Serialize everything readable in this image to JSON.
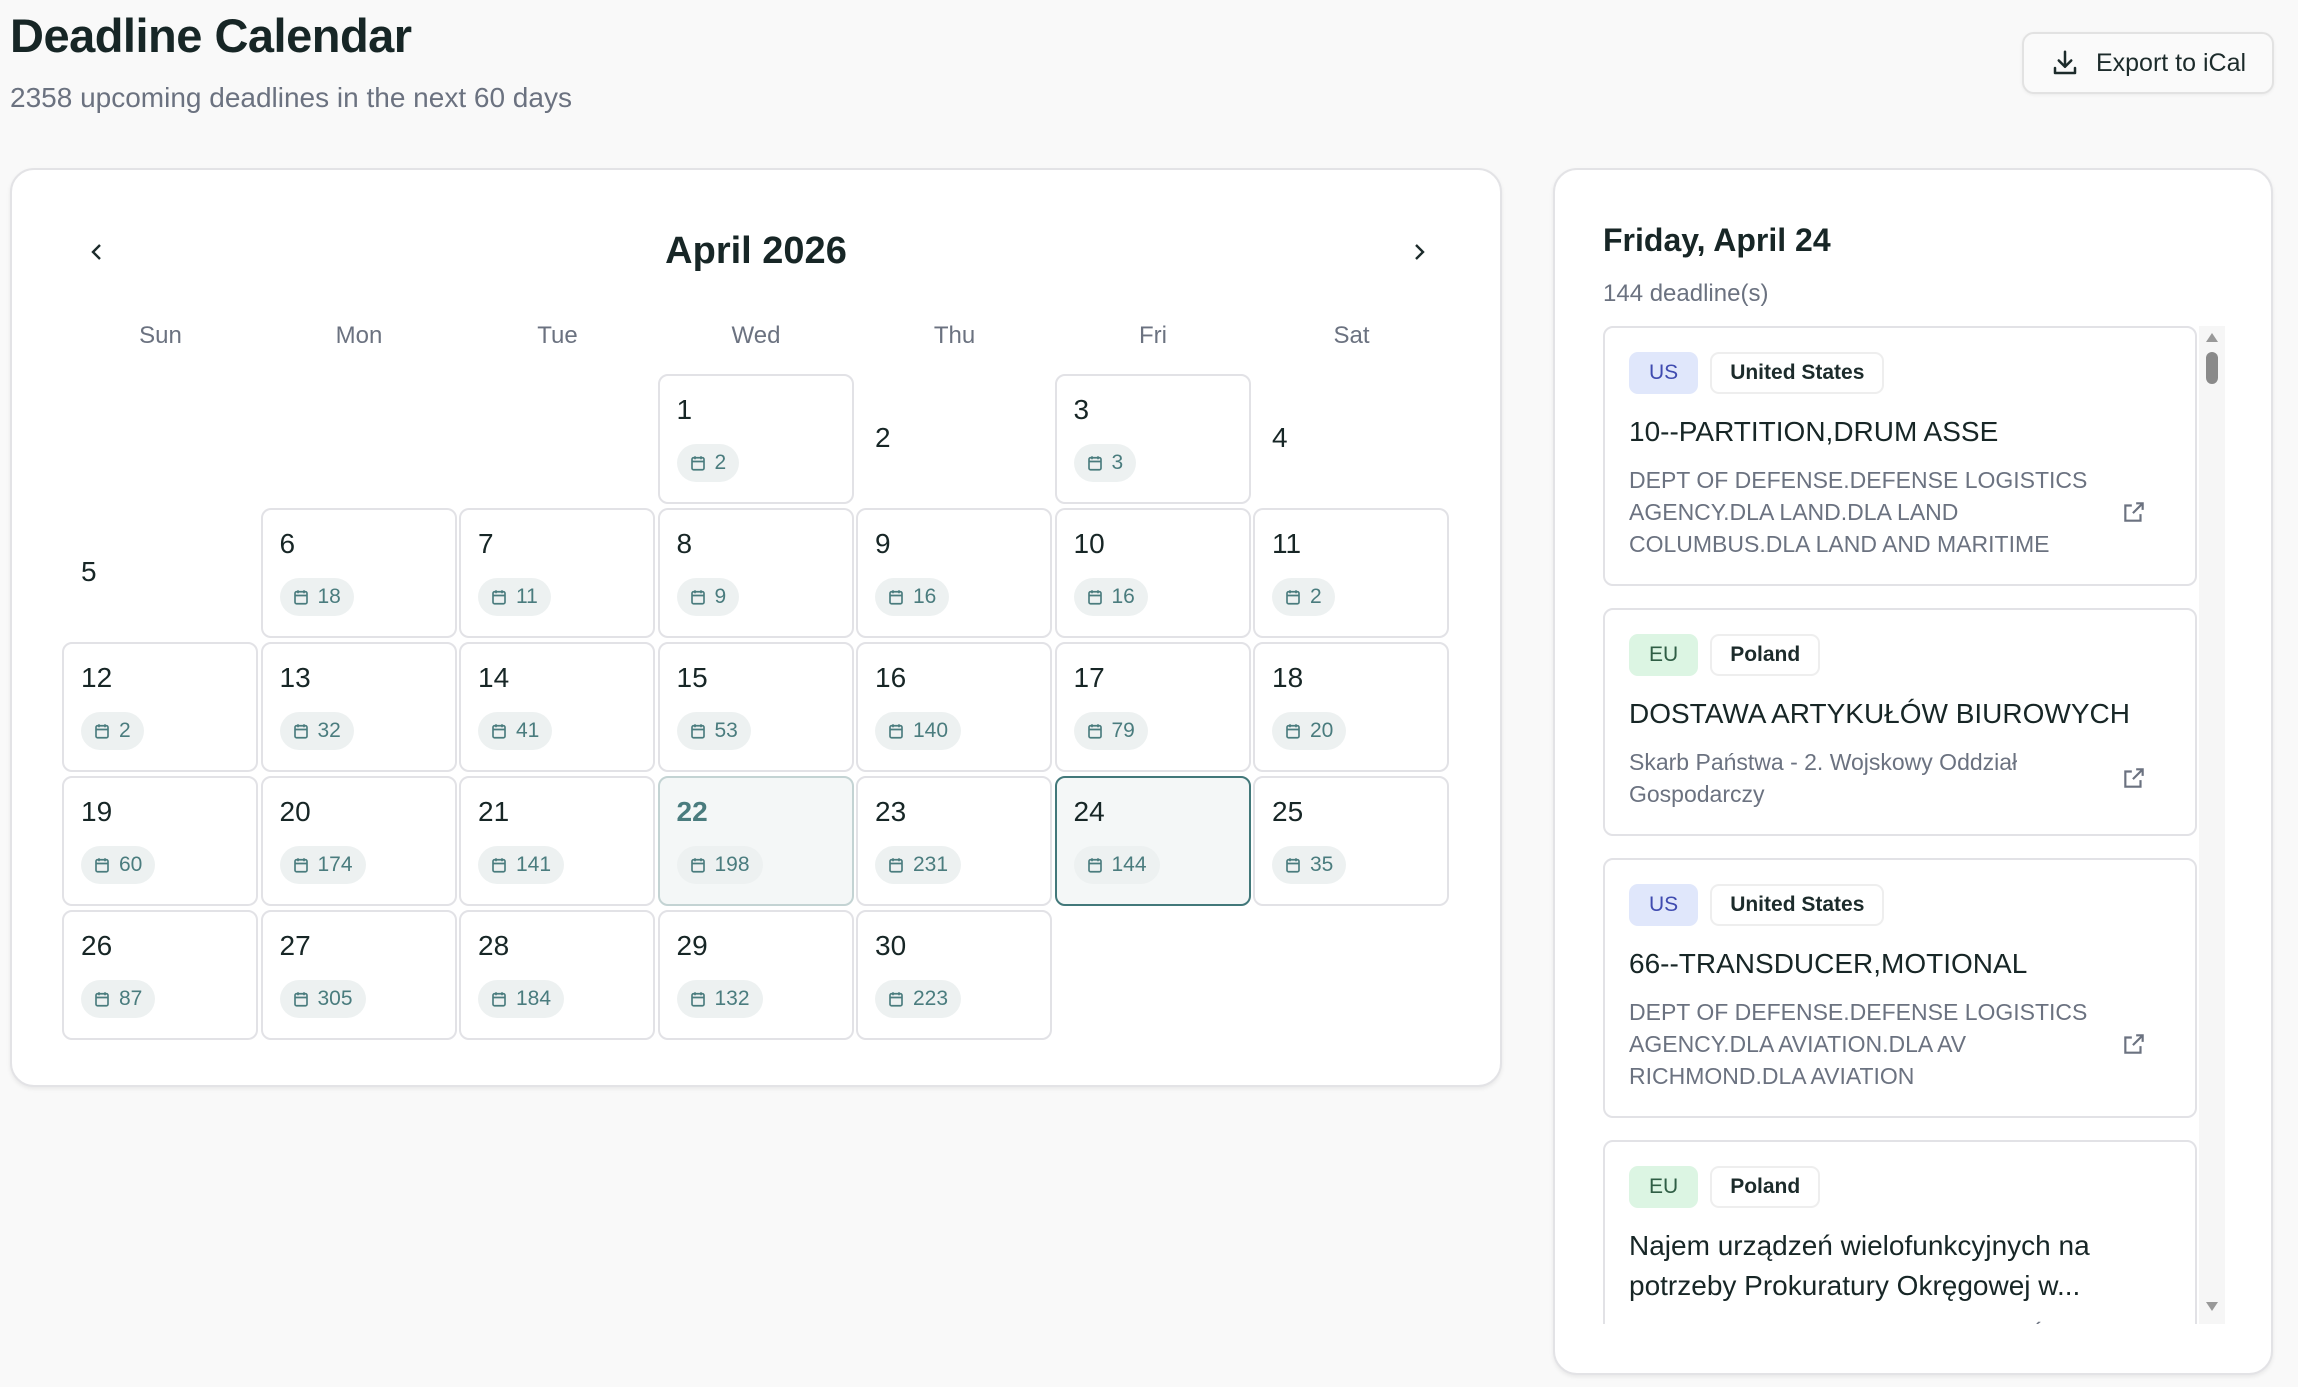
{
  "header": {
    "title": "Deadline Calendar",
    "subtitle": "2358 upcoming deadlines in the next 60 days",
    "export_label": "Export to iCal"
  },
  "calendar": {
    "month_label": "April 2026",
    "weekdays": [
      "Sun",
      "Mon",
      "Tue",
      "Wed",
      "Thu",
      "Fri",
      "Sat"
    ],
    "first_weekday": 3,
    "today": 22,
    "selected": 24,
    "days": [
      {
        "d": "1",
        "c": "2"
      },
      {
        "d": "2",
        "c": null
      },
      {
        "d": "3",
        "c": "3"
      },
      {
        "d": "4",
        "c": null
      },
      {
        "d": "5",
        "c": null
      },
      {
        "d": "6",
        "c": "18"
      },
      {
        "d": "7",
        "c": "11"
      },
      {
        "d": "8",
        "c": "9"
      },
      {
        "d": "9",
        "c": "16"
      },
      {
        "d": "10",
        "c": "16"
      },
      {
        "d": "11",
        "c": "2"
      },
      {
        "d": "12",
        "c": "2"
      },
      {
        "d": "13",
        "c": "32"
      },
      {
        "d": "14",
        "c": "41"
      },
      {
        "d": "15",
        "c": "53"
      },
      {
        "d": "16",
        "c": "140"
      },
      {
        "d": "17",
        "c": "79"
      },
      {
        "d": "18",
        "c": "20"
      },
      {
        "d": "19",
        "c": "60"
      },
      {
        "d": "20",
        "c": "174"
      },
      {
        "d": "21",
        "c": "141"
      },
      {
        "d": "22",
        "c": "198"
      },
      {
        "d": "23",
        "c": "231"
      },
      {
        "d": "24",
        "c": "144"
      },
      {
        "d": "25",
        "c": "35"
      },
      {
        "d": "26",
        "c": "87"
      },
      {
        "d": "27",
        "c": "305"
      },
      {
        "d": "28",
        "c": "184"
      },
      {
        "d": "29",
        "c": "132"
      },
      {
        "d": "30",
        "c": "223"
      }
    ]
  },
  "panel": {
    "heading": "Friday, April 24",
    "count": "144 deadline(s)",
    "items": [
      {
        "region": "US",
        "country": "United States",
        "title": "10--PARTITION,DRUM ASSE",
        "org": "DEPT OF DEFENSE.DEFENSE LOGISTICS AGENCY.DLA LAND.DLA LAND COLUMBUS.DLA LAND AND MARITIME"
      },
      {
        "region": "EU",
        "country": "Poland",
        "title": "DOSTAWA ARTYKUŁÓW BIUROWYCH",
        "org": "Skarb Państwa - 2. Wojskowy Oddział Gospodarczy"
      },
      {
        "region": "US",
        "country": "United States",
        "title": "66--TRANSDUCER,MOTIONAL",
        "org": "DEPT OF DEFENSE.DEFENSE LOGISTICS AGENCY.DLA AVIATION.DLA AV RICHMOND.DLA AVIATION"
      },
      {
        "region": "EU",
        "country": "Poland",
        "title": "Najem urządzeń wielofunkcyjnych na potrzeby Prokuratury Okręgowej w...",
        "org": "PROKURATURA OKRĘGOWA W GDAŃSKU"
      }
    ]
  },
  "colors": {
    "accent": "#42787a",
    "us_bg": "#e0e7fb",
    "us_text": "#3f4bb0",
    "eu_bg": "#dcf5e3",
    "eu_text": "#2f5e45"
  }
}
